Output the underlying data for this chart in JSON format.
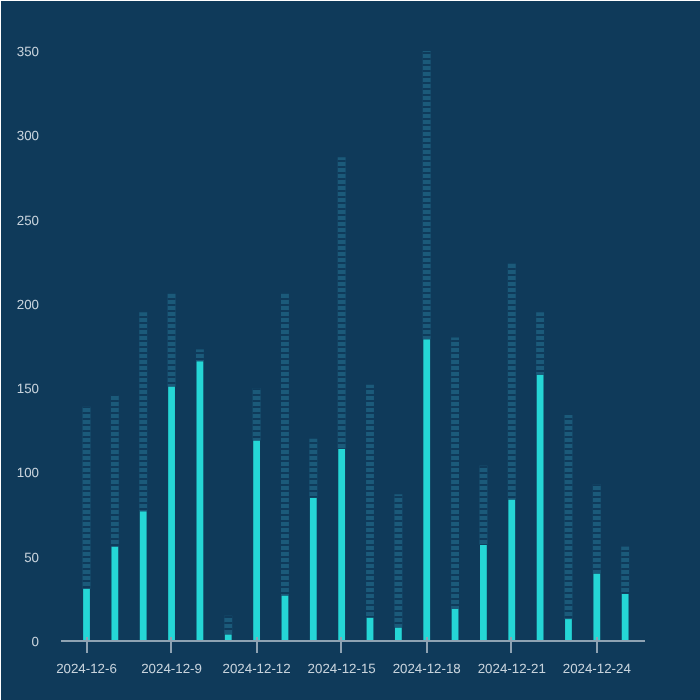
{
  "chart_data": {
    "type": "bar",
    "stacked": true,
    "categories": [
      "2024-12-6",
      null,
      null,
      "2024-12-9",
      null,
      null,
      "2024-12-12",
      null,
      null,
      "2024-12-15",
      null,
      null,
      "2024-12-18",
      null,
      null,
      "2024-12-21",
      null,
      null,
      "2024-12-24",
      null
    ],
    "series": [
      {
        "color": "#25d6d6",
        "values": [
          31,
          56,
          77,
          151,
          166,
          4,
          119,
          27,
          85,
          114,
          14,
          8,
          179,
          19,
          57,
          84,
          158,
          13,
          40,
          28
        ]
      },
      {
        "color": "#1b5a7a",
        "values": [
          108,
          90,
          118,
          55,
          7,
          11,
          31,
          179,
          35,
          173,
          138,
          79,
          171,
          161,
          47,
          140,
          37,
          121,
          53,
          28
        ]
      }
    ],
    "ylim": [
      0,
      350
    ],
    "yticks": [
      0,
      50,
      100,
      150,
      200,
      250,
      300,
      350
    ],
    "grid": false
  }
}
